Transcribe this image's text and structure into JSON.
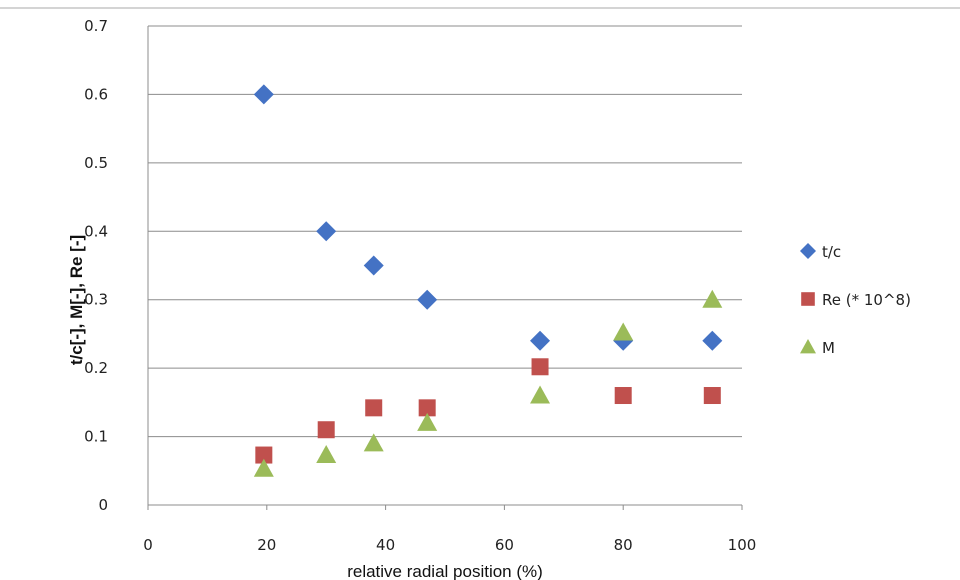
{
  "chart_data": {
    "type": "scatter",
    "title": "",
    "xlabel": "relative radial position (%)",
    "ylabel": "t/c[-], M[-], Re [-]",
    "xlim": [
      0,
      100
    ],
    "ylim": [
      0,
      0.7
    ],
    "x_ticks": [
      "0",
      "20",
      "40",
      "60",
      "80",
      "100"
    ],
    "y_ticks": [
      "0",
      "0.1",
      "0.2",
      "0.3",
      "0.4",
      "0.5",
      "0.6",
      "0.7"
    ],
    "grid": "horizontal",
    "legend_position": "right",
    "series": [
      {
        "name": "t/c",
        "marker": "diamond",
        "color": "#4472C4",
        "points": [
          [
            19.5,
            0.6
          ],
          [
            30,
            0.4
          ],
          [
            38,
            0.35
          ],
          [
            47,
            0.3
          ],
          [
            66,
            0.24
          ],
          [
            80,
            0.24
          ],
          [
            95,
            0.24
          ]
        ]
      },
      {
        "name": "Re (* 10^8)",
        "marker": "square",
        "color": "#C0504D",
        "points": [
          [
            19.5,
            0.073
          ],
          [
            30,
            0.11
          ],
          [
            38,
            0.142
          ],
          [
            47,
            0.142
          ],
          [
            66,
            0.202
          ],
          [
            80,
            0.16
          ],
          [
            95,
            0.16
          ]
        ]
      },
      {
        "name": "M",
        "marker": "triangle",
        "color": "#9BBB59",
        "points": [
          [
            19.5,
            0.053
          ],
          [
            30,
            0.073
          ],
          [
            38,
            0.09
          ],
          [
            47,
            0.12
          ],
          [
            66,
            0.16
          ],
          [
            80,
            0.252
          ],
          [
            95,
            0.3
          ]
        ]
      }
    ]
  }
}
